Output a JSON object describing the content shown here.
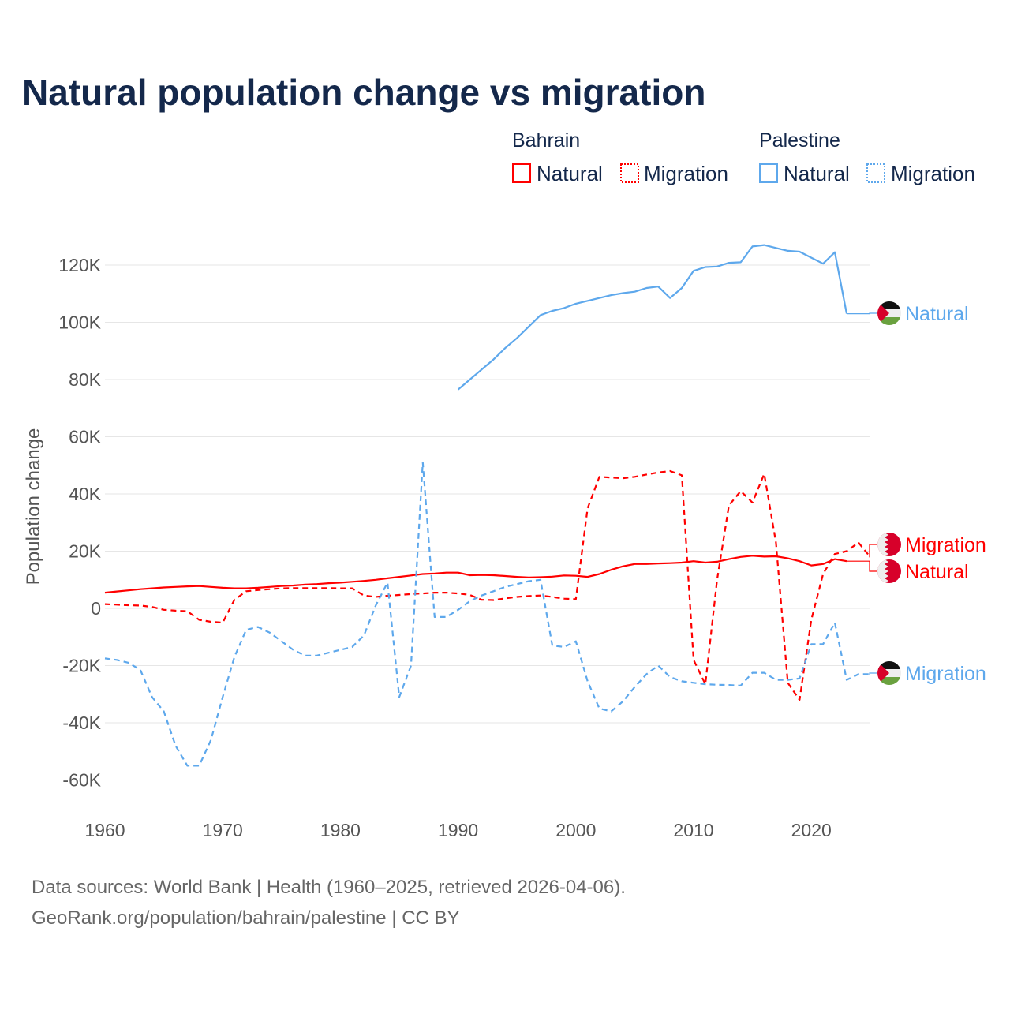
{
  "chart_data": {
    "type": "line",
    "title": "Natural population change vs migration",
    "ylabel": "Population change",
    "xlabel": "",
    "xlim": [
      1960,
      2025
    ],
    "ylim": [
      -70000,
      125000
    ],
    "grid": true,
    "x_ticks": [
      1960,
      1970,
      1980,
      1990,
      2000,
      2010,
      2020
    ],
    "x_tick_labels": [
      "1960",
      "1970",
      "1980",
      "1990",
      "2000",
      "2010",
      "2020"
    ],
    "y_ticks": [
      -60000,
      -40000,
      -20000,
      0,
      20000,
      40000,
      60000,
      80000,
      100000,
      120000
    ],
    "y_tick_labels": [
      "-60K",
      "-40K",
      "-20K",
      "0",
      "20K",
      "40K",
      "60K",
      "80K",
      "100K",
      "120K"
    ],
    "legend": {
      "placement": "top-right",
      "groups": [
        {
          "name": "Bahrain",
          "items": [
            "Natural",
            "Migration"
          ]
        },
        {
          "name": "Palestine",
          "items": [
            "Natural",
            "Migration"
          ]
        }
      ]
    },
    "colors": {
      "bahrain": "#ff0000",
      "palestine": "#5ea8ec"
    },
    "series": [
      {
        "name": "Bahrain Natural",
        "country": "Bahrain",
        "kind": "Natural",
        "label": "Natural",
        "start": 1960,
        "values": [
          5500,
          5900,
          6300,
          6700,
          7000,
          7300,
          7500,
          7700,
          7800,
          7500,
          7200,
          7000,
          7000,
          7200,
          7500,
          7800,
          8000,
          8300,
          8500,
          8800,
          9000,
          9300,
          9600,
          10000,
          10500,
          11000,
          11500,
          12000,
          12200,
          12500,
          12500,
          11600,
          11700,
          11600,
          11300,
          11000,
          10800,
          10900,
          11100,
          11500,
          11400,
          11000,
          12000,
          13500,
          14700,
          15500,
          15500,
          15700,
          15800,
          16000,
          16500,
          16000,
          16300,
          17200,
          18000,
          18400,
          18100,
          18200,
          17500,
          16500,
          15000,
          15500,
          17200,
          16500
        ]
      },
      {
        "name": "Bahrain Migration",
        "country": "Bahrain",
        "kind": "Migration",
        "label": "Migration",
        "start": 1960,
        "values": [
          1500,
          1300,
          1100,
          1000,
          500,
          -500,
          -800,
          -1000,
          -4000,
          -4700,
          -5000,
          3000,
          6000,
          6400,
          6700,
          7000,
          7100,
          7100,
          7100,
          7100,
          7000,
          7000,
          4500,
          4000,
          4400,
          4700,
          5000,
          5200,
          5500,
          5500,
          5200,
          4700,
          3000,
          2900,
          3500,
          4000,
          4300,
          4500,
          4000,
          3400,
          3200,
          35000,
          46000,
          45700,
          45500,
          46000,
          46800,
          47500,
          48000,
          46500,
          -18000,
          -26500,
          10000,
          36000,
          41000,
          37000,
          47000,
          23000,
          -26000,
          -32000,
          -4000,
          12000,
          19000,
          20000,
          23000,
          18000
        ]
      },
      {
        "name": "Palestine Natural",
        "country": "Palestine",
        "kind": "Natural",
        "label": "Natural",
        "start": 1990,
        "values": [
          76500,
          80000,
          83500,
          87000,
          91000,
          94500,
          98500,
          102500,
          104000,
          105000,
          106500,
          107500,
          108500,
          109500,
          110200,
          110700,
          112000,
          112500,
          108500,
          112000,
          118000,
          119300,
          119500,
          120800,
          121000,
          126500,
          127000,
          126000,
          125000,
          124700,
          122600,
          120500,
          124500,
          103000
        ]
      },
      {
        "name": "Palestine Migration",
        "country": "Palestine",
        "kind": "Migration",
        "label": "Migration",
        "start": 1960,
        "values": [
          -17500,
          -18000,
          -19000,
          -21500,
          -31000,
          -36000,
          -48000,
          -55000,
          -55000,
          -46000,
          -31000,
          -17000,
          -7500,
          -6500,
          -8500,
          -11500,
          -14500,
          -16500,
          -16500,
          -15500,
          -14500,
          -13500,
          -9500,
          1000,
          9000,
          -31000,
          -20000,
          51000,
          -3000,
          -3000,
          -500,
          2500,
          4500,
          6000,
          7500,
          8500,
          9500,
          10000,
          -13000,
          -13500,
          -11500,
          -25500,
          -35000,
          -36000,
          -32500,
          -27500,
          -23000,
          -20000,
          -24000,
          -25500,
          -26000,
          -26500,
          -26700,
          -26800,
          -27000,
          -22500,
          -22500,
          -25000,
          -25000,
          -24500,
          -12500,
          -12500,
          -5000,
          -25000,
          -23000,
          -23000
        ]
      }
    ]
  },
  "footer": {
    "line1": "Data sources: World Bank | Health (1960–2025, retrieved 2026-04-06).",
    "line2": "GeoRank.org/population/bahrain/palestine | CC BY"
  }
}
